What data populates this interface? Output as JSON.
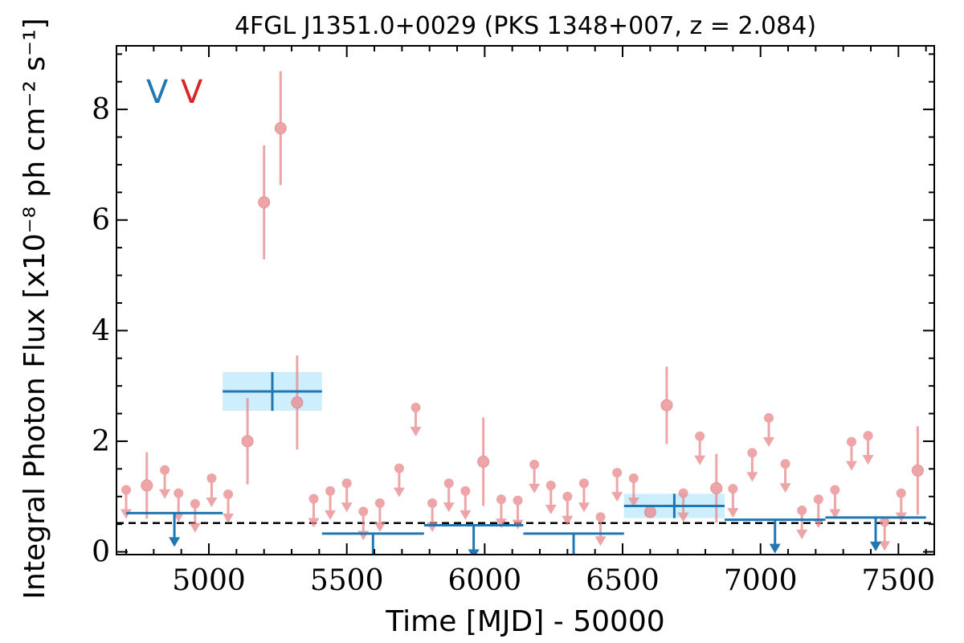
{
  "chart_data": {
    "type": "scatter",
    "title": "4FGL J1351.0+0029 (PKS 1348+007, z = 2.084)",
    "xlabel": "Time [MJD] - 50000",
    "ylabel": "Integral Photon Flux [x10⁻⁸ ph cm⁻² s⁻¹]",
    "xlim": [
      4665,
      7630
    ],
    "ylim": [
      -0.05,
      9.15
    ],
    "xticks": [
      5000,
      5500,
      6000,
      6500,
      7000,
      7500
    ],
    "yticks": [
      0,
      2,
      4,
      6,
      8
    ],
    "xtick_labels": [
      "5000",
      "5500",
      "6000",
      "6500",
      "7000",
      "7500"
    ],
    "ytick_labels": [
      "0",
      "2",
      "4",
      "6",
      "8"
    ],
    "reference_line": 0.52,
    "legend": {
      "placement": "top-left",
      "entries": [
        {
          "text": "V",
          "color": "#1f77b4"
        },
        {
          "text": "V",
          "color": "#d62728"
        }
      ]
    },
    "colors": {
      "short_bin": "#e8888b",
      "long_bin": "#1f77b4",
      "long_bin_band": "#cdeefd",
      "reference": "#000000"
    },
    "series": [
      {
        "points": [
          {
            "x": 5140,
            "y": 2.0,
            "err": 0.78
          },
          {
            "x": 5200,
            "y": 6.32,
            "err": 1.03
          },
          {
            "x": 5260,
            "y": 7.66,
            "err": 1.03
          },
          {
            "x": 5320,
            "y": 2.7,
            "err": 0.85
          },
          {
            "x": 5995,
            "y": 1.63,
            "err": 0.8
          },
          {
            "x": 6600,
            "y": 0.72,
            "err": 0.0
          },
          {
            "x": 6660,
            "y": 2.65,
            "err": 0.7
          },
          {
            "x": 6840,
            "y": 1.15,
            "err": 0.62
          },
          {
            "x": 7570,
            "y": 1.47,
            "err": 0.8
          },
          {
            "x": 4775,
            "y": 1.2,
            "err": 0.6
          }
        ],
        "upper_limits": [
          {
            "x": 4700,
            "y": 1.12
          },
          {
            "x": 4840,
            "y": 1.48
          },
          {
            "x": 4890,
            "y": 1.06
          },
          {
            "x": 4950,
            "y": 0.87
          },
          {
            "x": 5010,
            "y": 1.33
          },
          {
            "x": 5070,
            "y": 1.04
          },
          {
            "x": 5380,
            "y": 0.96
          },
          {
            "x": 5440,
            "y": 1.1
          },
          {
            "x": 5500,
            "y": 1.24
          },
          {
            "x": 5560,
            "y": 0.73
          },
          {
            "x": 5620,
            "y": 0.88
          },
          {
            "x": 5690,
            "y": 1.51
          },
          {
            "x": 5750,
            "y": 2.61
          },
          {
            "x": 5810,
            "y": 0.88
          },
          {
            "x": 5870,
            "y": 1.24
          },
          {
            "x": 5930,
            "y": 1.1
          },
          {
            "x": 6060,
            "y": 0.95
          },
          {
            "x": 6120,
            "y": 0.93
          },
          {
            "x": 6180,
            "y": 1.58
          },
          {
            "x": 6240,
            "y": 1.2
          },
          {
            "x": 6300,
            "y": 1.0
          },
          {
            "x": 6360,
            "y": 1.24
          },
          {
            "x": 6420,
            "y": 0.63
          },
          {
            "x": 6480,
            "y": 1.43
          },
          {
            "x": 6540,
            "y": 1.33
          },
          {
            "x": 6720,
            "y": 1.06
          },
          {
            "x": 6780,
            "y": 2.09
          },
          {
            "x": 6900,
            "y": 1.14
          },
          {
            "x": 6970,
            "y": 1.79
          },
          {
            "x": 7030,
            "y": 2.42
          },
          {
            "x": 7090,
            "y": 1.59
          },
          {
            "x": 7150,
            "y": 0.75
          },
          {
            "x": 7210,
            "y": 0.95
          },
          {
            "x": 7270,
            "y": 1.12
          },
          {
            "x": 7330,
            "y": 1.99
          },
          {
            "x": 7390,
            "y": 2.1
          },
          {
            "x": 7450,
            "y": 0.54
          },
          {
            "x": 7510,
            "y": 1.06
          }
        ]
      },
      {
        "points": [
          {
            "x_start": 5050,
            "x_end": 5410,
            "y": 2.9,
            "err": 0.35
          },
          {
            "x_start": 6505,
            "x_end": 6870,
            "y": 0.83,
            "err": 0.22
          }
        ],
        "upper_limits": [
          {
            "x_start": 4700,
            "x_end": 5050,
            "y": 0.7
          },
          {
            "x_start": 5410,
            "x_end": 5780,
            "y": 0.33
          },
          {
            "x_start": 5780,
            "x_end": 6140,
            "y": 0.48
          },
          {
            "x_start": 6140,
            "x_end": 6505,
            "y": 0.33
          },
          {
            "x_start": 6870,
            "x_end": 7235,
            "y": 0.58
          },
          {
            "x_start": 7235,
            "x_end": 7600,
            "y": 0.62
          }
        ]
      }
    ]
  }
}
